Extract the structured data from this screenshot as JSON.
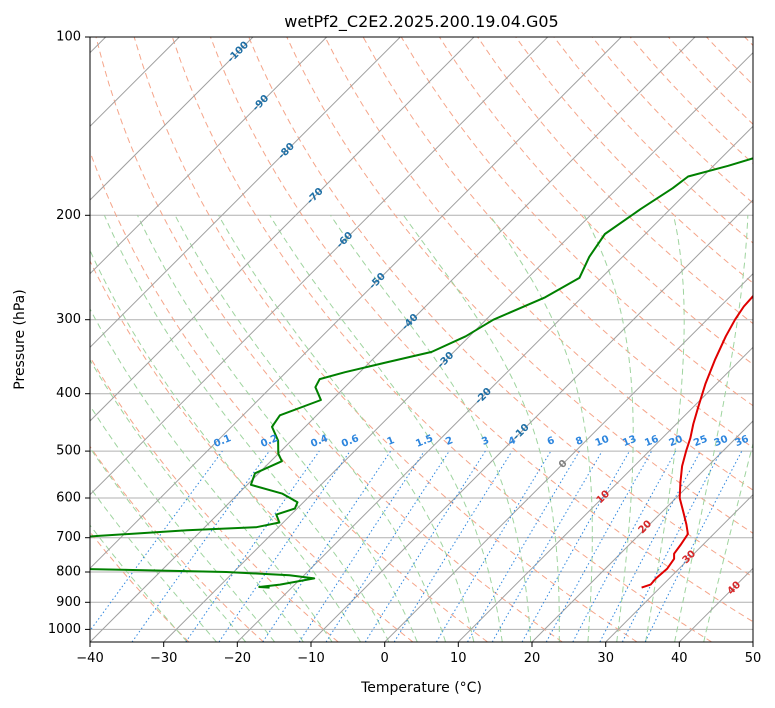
{
  "chart_data": {
    "type": "line",
    "title": "wetPf2_C2E2.2025.200.19.04.G05",
    "xlabel": "Temperature (°C)",
    "ylabel": "Pressure (hPa)",
    "xlim": [
      -40,
      50
    ],
    "ylim": [
      1050,
      100
    ],
    "y_scale": "log",
    "grid": true,
    "x_ticks": [
      -40,
      -30,
      -20,
      -10,
      0,
      10,
      20,
      30,
      40,
      50
    ],
    "y_ticks": [
      100,
      200,
      300,
      400,
      500,
      600,
      700,
      800,
      900,
      1000
    ],
    "series": [
      {
        "role": "temperature",
        "color": "#e00000",
        "points": [
          [
            27.5,
            850
          ],
          [
            28.3,
            840
          ],
          [
            28.2,
            820
          ],
          [
            28.4,
            790
          ],
          [
            28.0,
            760
          ],
          [
            27.3,
            745
          ],
          [
            27.0,
            720
          ],
          [
            26.5,
            690
          ],
          [
            25.0,
            665
          ],
          [
            23.0,
            635
          ],
          [
            20.5,
            600
          ],
          [
            18.5,
            565
          ],
          [
            16.5,
            530
          ],
          [
            15.0,
            500
          ],
          [
            13.8,
            475
          ],
          [
            12.3,
            450
          ],
          [
            10.6,
            420
          ],
          [
            8.5,
            385
          ],
          [
            6.5,
            350
          ],
          [
            4.8,
            320
          ],
          [
            3.8,
            300
          ],
          [
            3.2,
            285
          ],
          [
            3.0,
            270
          ],
          [
            3.4,
            250
          ],
          [
            3.4,
            230
          ],
          [
            3.0,
            210
          ],
          [
            2.8,
            190
          ],
          [
            2.6,
            170
          ],
          [
            1.8,
            155
          ],
          [
            1.0,
            145
          ],
          [
            1.2,
            130
          ],
          [
            0.4,
            115
          ],
          [
            0.8,
            103
          ],
          [
            1.3,
            100
          ]
        ]
      },
      {
        "role": "dewpoint",
        "color": "#008000",
        "points": [
          [
            -23.0,
            850
          ],
          [
            -24.5,
            848
          ],
          [
            -22.0,
            840
          ],
          [
            -18.2,
            820
          ],
          [
            -22.0,
            810
          ],
          [
            -31.0,
            800
          ],
          [
            -52.0,
            790
          ],
          [
            -68.0,
            780
          ],
          [
            -63.0,
            740
          ],
          [
            -62.0,
            720
          ],
          [
            -60.0,
            705
          ],
          [
            -53.0,
            695
          ],
          [
            -42.0,
            680
          ],
          [
            -33.0,
            672
          ],
          [
            -30.5,
            660
          ],
          [
            -32.0,
            640
          ],
          [
            -30.3,
            625
          ],
          [
            -30.8,
            610
          ],
          [
            -34.0,
            590
          ],
          [
            -39.5,
            570
          ],
          [
            -40.5,
            545
          ],
          [
            -38.5,
            520
          ],
          [
            -40.0,
            505
          ],
          [
            -41.8,
            480
          ],
          [
            -44.5,
            455
          ],
          [
            -45.0,
            435
          ],
          [
            -41.5,
            410
          ],
          [
            -44.0,
            390
          ],
          [
            -44.5,
            378
          ],
          [
            -42.0,
            368
          ],
          [
            -38.0,
            355
          ],
          [
            -33.0,
            340
          ],
          [
            -30.5,
            320
          ],
          [
            -29.0,
            300
          ],
          [
            -25.0,
            275
          ],
          [
            -23.0,
            255
          ],
          [
            -24.5,
            235
          ],
          [
            -25.5,
            215
          ],
          [
            -24.0,
            195
          ],
          [
            -22.5,
            180
          ],
          [
            -22.0,
            172
          ],
          [
            -18.0,
            165
          ],
          [
            -14.0,
            157
          ],
          [
            -13.5,
            150
          ],
          [
            -14.5,
            140
          ],
          [
            -14.0,
            132
          ],
          [
            -10.5,
            125
          ],
          [
            -6.5,
            120
          ],
          [
            -4.0,
            115
          ],
          [
            -3.0,
            108
          ],
          [
            -2.0,
            102
          ],
          [
            -1.7,
            100
          ]
        ]
      }
    ],
    "isotherm_labels": [
      "-100",
      "-90",
      "-80",
      "-70",
      "-60",
      "-50",
      "-40",
      "-30",
      "-20",
      "-10"
    ],
    "mixing_ratio_labels": [
      "0.1",
      "0.2",
      "0.4",
      "0.6",
      "1",
      "1.5",
      "2",
      "3",
      "4",
      "6",
      "8",
      "10",
      "13",
      "16",
      "20",
      "25",
      "30",
      "36"
    ],
    "moist_adiabat_labels": [
      "0",
      "10",
      "20",
      "30",
      "40"
    ],
    "colors": {
      "isotherm": "#a0a0a0",
      "dry_adiabat": "#f5a58a",
      "moist_adiabat": "#9fd49f",
      "mixing_ratio": "#2e86de",
      "isotherm_label": "#1f6fa5",
      "moist_label_warm": "#d62728",
      "moist_label_zero": "#808080",
      "grid": "#b0b0b0"
    }
  }
}
